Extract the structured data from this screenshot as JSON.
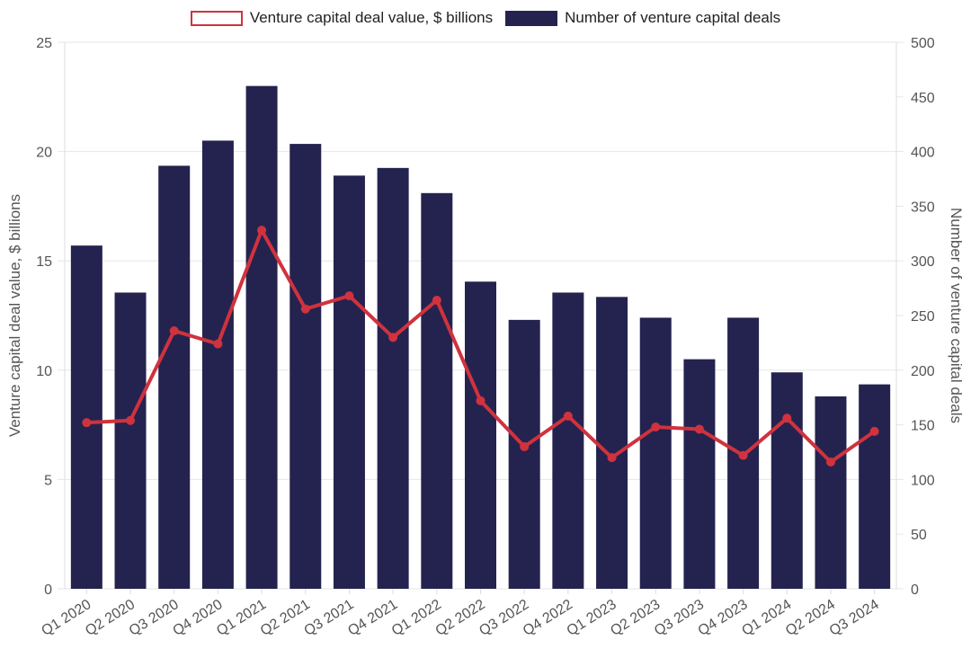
{
  "legend": {
    "line_label": "Venture capital deal value, $ billions",
    "bar_label": "Number of venture capital deals"
  },
  "chart_data": {
    "type": "bar",
    "categories": [
      "Q1 2020",
      "Q2 2020",
      "Q3 2020",
      "Q4 2020",
      "Q1 2021",
      "Q2 2021",
      "Q3 2021",
      "Q4 2021",
      "Q1 2022",
      "Q2 2022",
      "Q3 2022",
      "Q4 2022",
      "Q1 2023",
      "Q2 2023",
      "Q3 2023",
      "Q4 2023",
      "Q1 2024",
      "Q2 2024",
      "Q3 2024"
    ],
    "series": [
      {
        "name": "Number of venture capital deals",
        "type": "bar",
        "axis": "right",
        "color": "#24234f",
        "values": [
          314,
          271,
          387,
          410,
          460,
          407,
          378,
          385,
          362,
          281,
          246,
          271,
          267,
          248,
          210,
          248,
          198,
          176,
          187
        ]
      },
      {
        "name": "Venture capital deal value, $ billions",
        "type": "line",
        "axis": "left",
        "color": "#d0323e",
        "values": [
          7.6,
          7.7,
          11.8,
          11.2,
          16.4,
          12.8,
          13.4,
          11.5,
          13.2,
          8.6,
          6.5,
          7.9,
          6.0,
          7.4,
          7.3,
          6.1,
          7.8,
          5.8,
          7.2
        ]
      }
    ],
    "ylabel": "Venture capital deal value, $ billions",
    "y2label": "Number of venture capital deals",
    "ylim": [
      0,
      25
    ],
    "y2lim": [
      0,
      500
    ],
    "yticks": [
      "0",
      "5",
      "10",
      "15",
      "20",
      "25"
    ],
    "y2ticks": [
      "0",
      "50",
      "100",
      "150",
      "200",
      "250",
      "300",
      "350",
      "400",
      "450",
      "500"
    ],
    "grid": true
  }
}
